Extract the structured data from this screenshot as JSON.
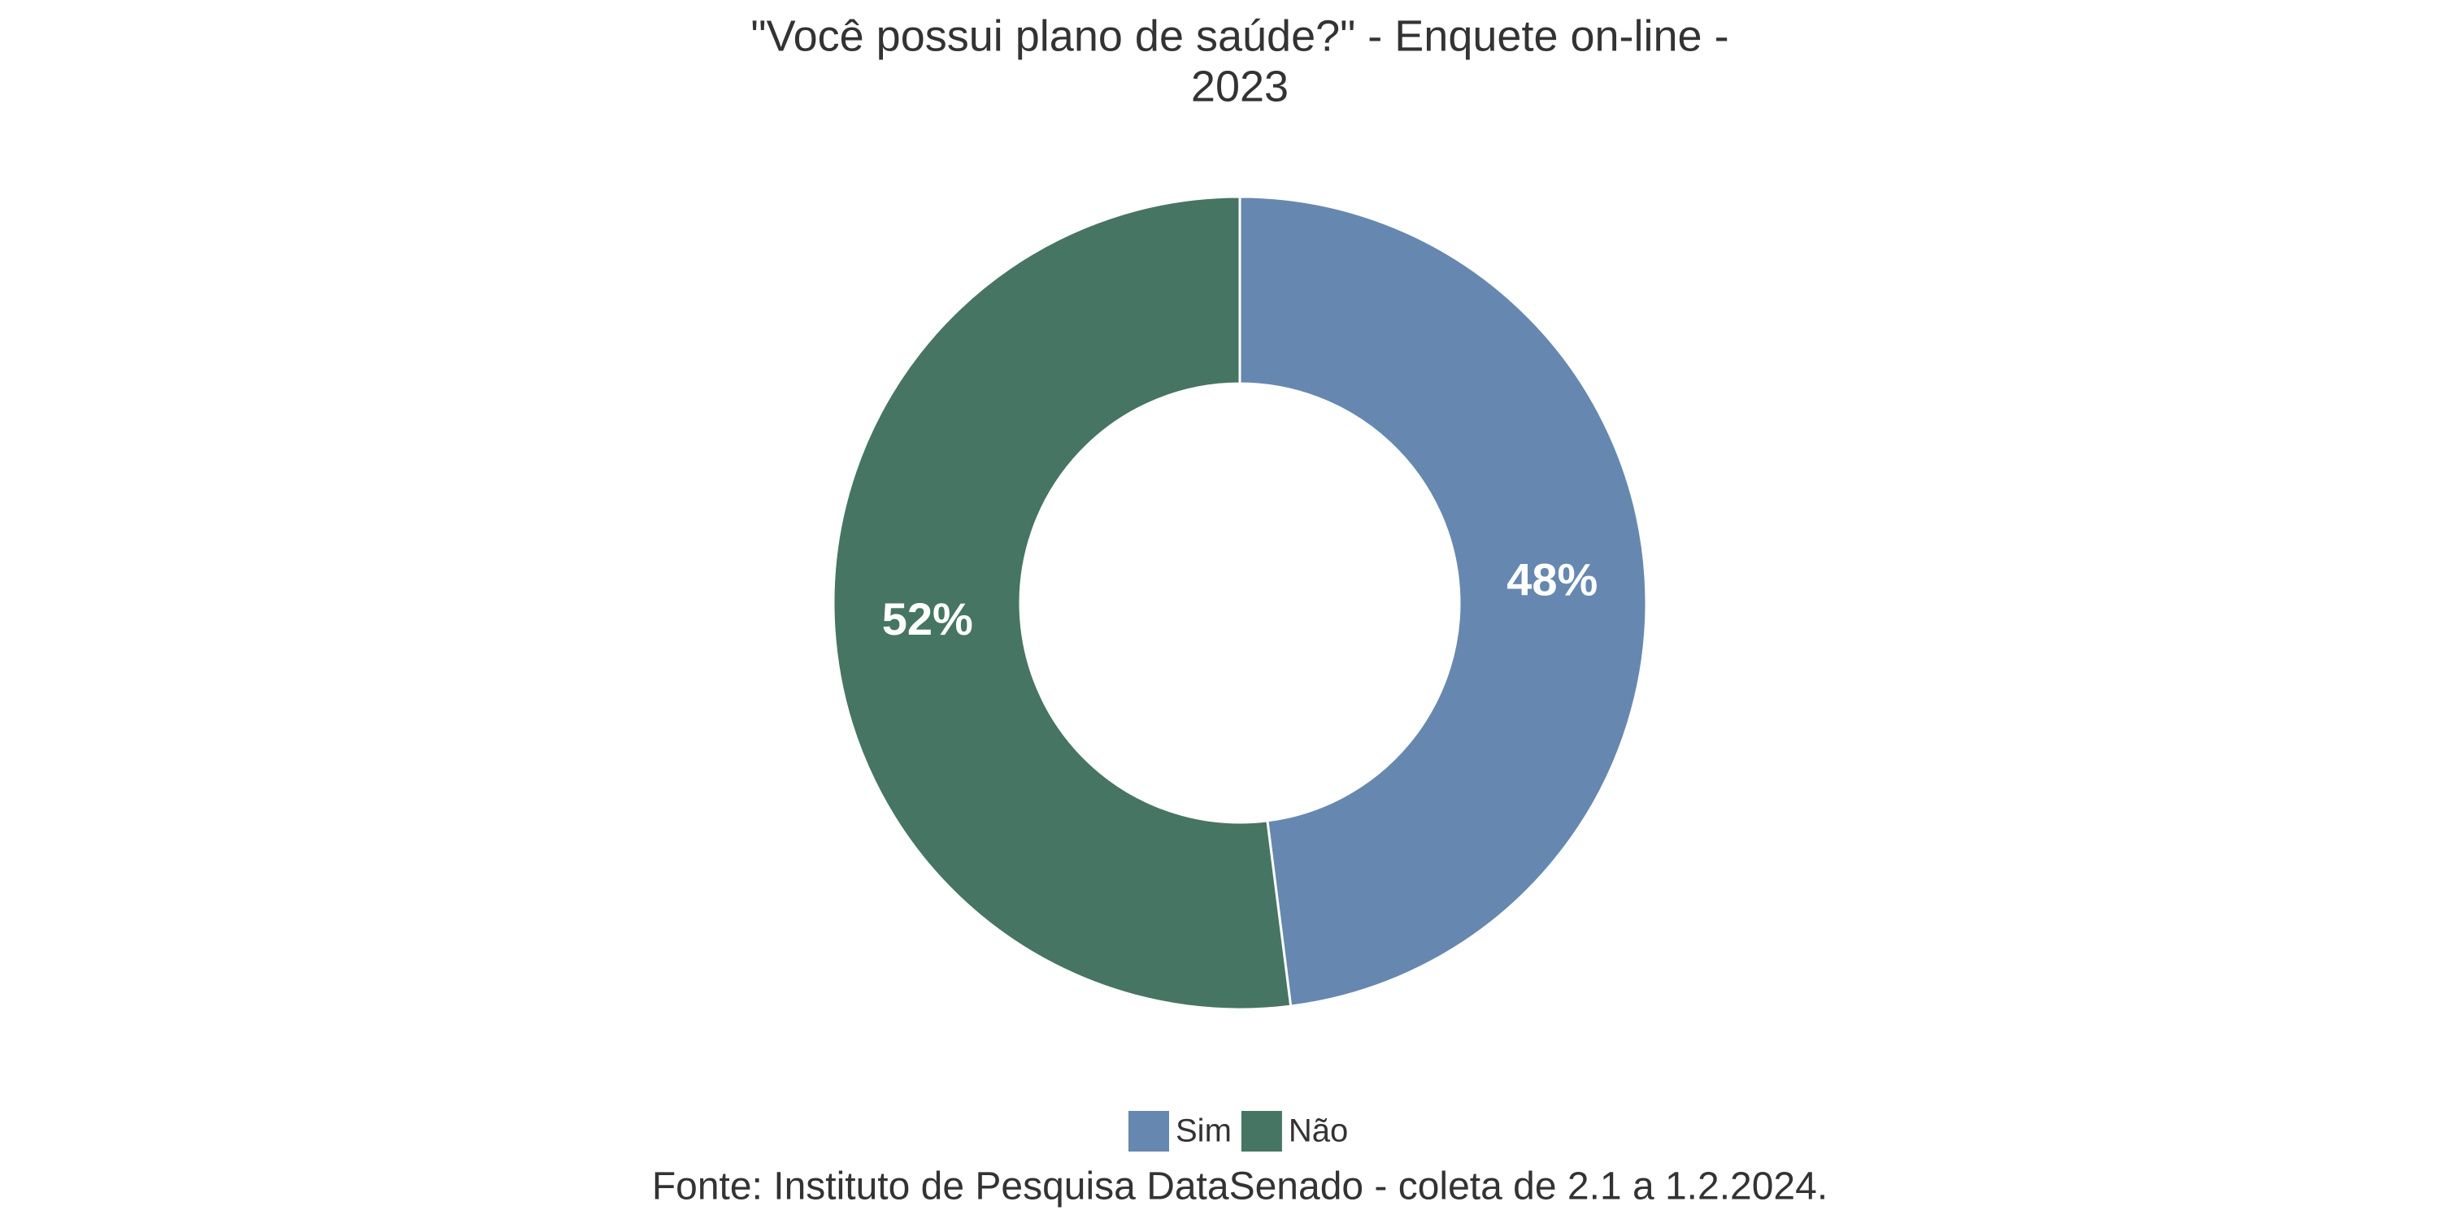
{
  "chart_data": {
    "type": "donut",
    "title": [
      "\"Você possui plano de saúde?\" - Enquete on-line -",
      "2023"
    ],
    "categories": [
      "Sim",
      "Não"
    ],
    "values": [
      48,
      52
    ],
    "value_labels": [
      "48%",
      "52%"
    ],
    "colors": [
      "#6688b0",
      "#467563"
    ],
    "legend": "bottom",
    "caption": "Fonte: Instituto de Pesquisa DataSenado - coleta de 2.1 a 1.2.2024."
  }
}
